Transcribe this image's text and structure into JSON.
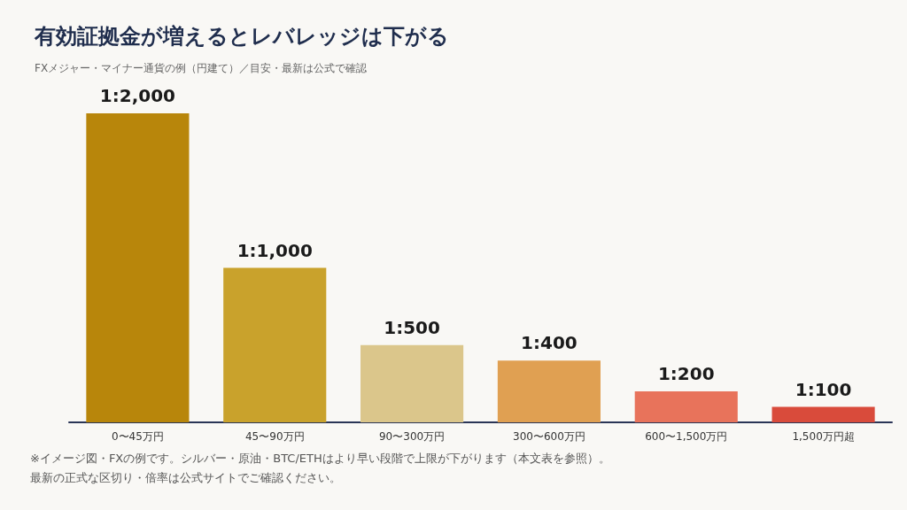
{
  "chart_data": {
    "type": "bar",
    "title": "有効証拠金が増えるとレバレッジは下がる",
    "subtitle": "FXメジャー・マイナー通貨の例（円建て）／目安・最新は公式で確認",
    "categories": [
      "0〜45万円",
      "45〜90万円",
      "90〜300万円",
      "300〜600万円",
      "600〜1,500万円",
      "1,500万円超"
    ],
    "values": [
      2000,
      1000,
      500,
      400,
      200,
      100
    ],
    "colors": [
      "#b8860b",
      "#c9a22c",
      "#dbc68b",
      "#e0a052",
      "#e8735b",
      "#d94b3b"
    ],
    "value_labels": [
      "1:2,000",
      "1:1,000",
      "1:500",
      "1:400",
      "1:200",
      "1:100"
    ],
    "tick_labels": "x",
    "annotations": [
      "※イメージ図・FXの例です。シルバー・原油・BTC/ETHはより早い段階で上限が下がります（本文表を参照）。",
      "最新の正式な区切り・倍率は公式サイトでご確認ください。"
    ]
  }
}
